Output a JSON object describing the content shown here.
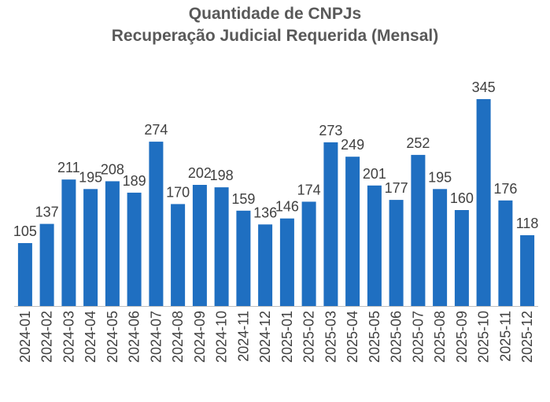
{
  "chart_data": {
    "type": "bar",
    "title": "Quantidade de CNPJs",
    "subtitle": "Recuperação Judicial Requerida (Mensal)",
    "categories": [
      "2024-01",
      "2024-02",
      "2024-03",
      "2024-04",
      "2024-05",
      "2024-06",
      "2024-07",
      "2024-08",
      "2024-09",
      "2024-10",
      "2024-11",
      "2024-12",
      "2025-01",
      "2025-02",
      "2025-03",
      "2025-04",
      "2025-05",
      "2025-06",
      "2025-07",
      "2025-08",
      "2025-09",
      "2025-10",
      "2025-11",
      "2025-12"
    ],
    "values": [
      105,
      137,
      211,
      195,
      208,
      189,
      274,
      170,
      202,
      198,
      159,
      136,
      146,
      174,
      273,
      249,
      201,
      177,
      252,
      195,
      160,
      345,
      176,
      118
    ],
    "xlabel": "",
    "ylabel": "",
    "ylim": [
      0,
      345
    ],
    "grid": false,
    "legend": "none",
    "bar_color": "#1f6fc1",
    "axis_color": "#bfbfbf"
  }
}
